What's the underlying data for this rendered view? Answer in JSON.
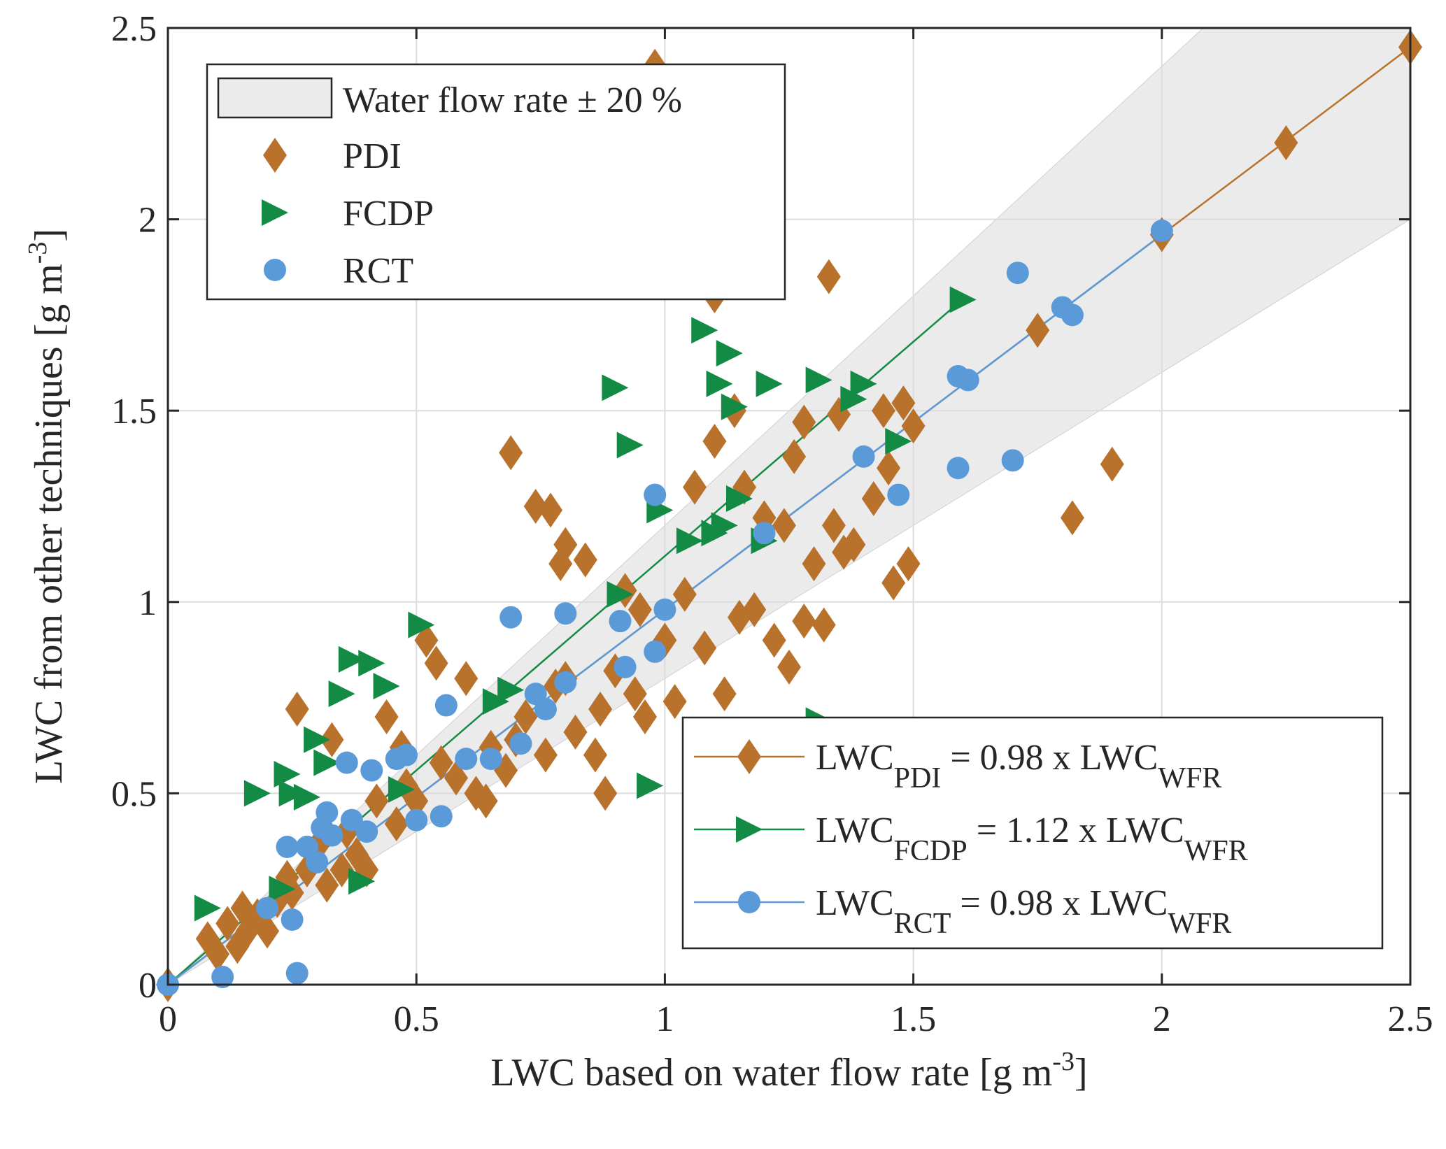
{
  "chart_data": {
    "type": "scatter",
    "xlabel": "LWC based on water flow rate [g m",
    "xlabel_sup": "-3",
    "xlabel_end": "]",
    "ylabel": "LWC from other techniques [g m",
    "ylabel_sup": "-3",
    "ylabel_end": "]",
    "xlim": [
      0,
      2.5
    ],
    "ylim": [
      0,
      2.5
    ],
    "grid": true,
    "xticks": [
      "0",
      "0.5",
      "1",
      "1.5",
      "2",
      "2.5"
    ],
    "yticks": [
      "0",
      "0.5",
      "1",
      "1.5",
      "2",
      "2.5"
    ],
    "band": {
      "label": "Water flow rate ± 20 %",
      "lower_factor": 0.8,
      "upper_factor": 1.2
    },
    "legend_markers": [
      {
        "name": "PDI",
        "marker": "diamond",
        "color": "#b8722c"
      },
      {
        "name": "FCDP",
        "marker": "triangle-right",
        "color": "#138b45"
      },
      {
        "name": "RCT",
        "marker": "circle",
        "color": "#5b9ad8"
      }
    ],
    "fit_lines": [
      {
        "series": "PDI",
        "main": "LWC",
        "sub": "PDI",
        "eq": " = 0.98 x LWC",
        "sub2": "WFR",
        "slope": 0.98,
        "x_range": [
          0,
          2.5
        ],
        "color": "#b8722c"
      },
      {
        "series": "FCDP",
        "main": "LWC",
        "sub": "FCDP",
        "eq": " = 1.12 x LWC",
        "sub2": "WFR",
        "slope": 1.12,
        "x_range": [
          0,
          1.6
        ],
        "color": "#138b45"
      },
      {
        "series": "RCT",
        "main": "LWC",
        "sub": "RCT",
        "eq": " = 0.98 x LWC",
        "sub2": "WFR",
        "slope": 0.98,
        "x_range": [
          0,
          2.0
        ],
        "color": "#5b9ad8"
      }
    ],
    "series": [
      {
        "name": "PDI",
        "points": [
          [
            0.0,
            0.0
          ],
          [
            0.08,
            0.12
          ],
          [
            0.1,
            0.08
          ],
          [
            0.12,
            0.16
          ],
          [
            0.14,
            0.1
          ],
          [
            0.15,
            0.2
          ],
          [
            0.16,
            0.14
          ],
          [
            0.18,
            0.18
          ],
          [
            0.2,
            0.14
          ],
          [
            0.22,
            0.22
          ],
          [
            0.24,
            0.28
          ],
          [
            0.25,
            0.24
          ],
          [
            0.26,
            0.72
          ],
          [
            0.28,
            0.3
          ],
          [
            0.3,
            0.36
          ],
          [
            0.32,
            0.26
          ],
          [
            0.33,
            0.64
          ],
          [
            0.35,
            0.3
          ],
          [
            0.36,
            0.4
          ],
          [
            0.38,
            0.34
          ],
          [
            0.4,
            0.3
          ],
          [
            0.42,
            0.48
          ],
          [
            0.44,
            0.7
          ],
          [
            0.46,
            0.42
          ],
          [
            0.47,
            0.62
          ],
          [
            0.48,
            0.52
          ],
          [
            0.5,
            0.48
          ],
          [
            0.52,
            0.9
          ],
          [
            0.54,
            0.84
          ],
          [
            0.55,
            0.58
          ],
          [
            0.58,
            0.54
          ],
          [
            0.6,
            0.8
          ],
          [
            0.62,
            0.5
          ],
          [
            0.64,
            0.48
          ],
          [
            0.65,
            0.62
          ],
          [
            0.68,
            0.56
          ],
          [
            0.69,
            1.39
          ],
          [
            0.7,
            0.64
          ],
          [
            0.72,
            0.7
          ],
          [
            0.74,
            1.25
          ],
          [
            0.76,
            0.6
          ],
          [
            0.77,
            1.24
          ],
          [
            0.78,
            0.78
          ],
          [
            0.79,
            1.1
          ],
          [
            0.8,
            1.15
          ],
          [
            0.82,
            0.66
          ],
          [
            0.84,
            1.11
          ],
          [
            0.86,
            0.6
          ],
          [
            0.87,
            0.72
          ],
          [
            0.88,
            0.5
          ],
          [
            0.9,
            0.82
          ],
          [
            0.92,
            1.03
          ],
          [
            0.94,
            0.76
          ],
          [
            0.96,
            0.7
          ],
          [
            0.98,
            2.4
          ],
          [
            1.0,
            0.9
          ],
          [
            1.02,
            0.74
          ],
          [
            1.04,
            1.02
          ],
          [
            1.06,
            1.3
          ],
          [
            1.08,
            0.88
          ],
          [
            1.1,
            1.8
          ],
          [
            1.1,
            1.42
          ],
          [
            1.12,
            0.76
          ],
          [
            1.14,
            1.5
          ],
          [
            1.15,
            0.96
          ],
          [
            1.16,
            1.3
          ],
          [
            1.18,
            0.98
          ],
          [
            1.2,
            1.22
          ],
          [
            1.22,
            0.9
          ],
          [
            1.24,
            1.2
          ],
          [
            1.26,
            1.38
          ],
          [
            1.28,
            1.47
          ],
          [
            1.28,
            0.95
          ],
          [
            1.3,
            1.1
          ],
          [
            1.32,
            0.94
          ],
          [
            1.33,
            1.85
          ],
          [
            1.34,
            1.2
          ],
          [
            1.35,
            1.49
          ],
          [
            1.36,
            1.13
          ],
          [
            1.38,
            1.15
          ],
          [
            1.42,
            1.27
          ],
          [
            1.44,
            1.5
          ],
          [
            1.45,
            1.35
          ],
          [
            1.46,
            1.05
          ],
          [
            1.48,
            1.52
          ],
          [
            1.49,
            1.1
          ],
          [
            1.5,
            1.46
          ],
          [
            1.75,
            1.71
          ],
          [
            1.82,
            1.22
          ],
          [
            1.9,
            1.36
          ],
          [
            2.0,
            1.96
          ],
          [
            2.25,
            2.2
          ],
          [
            2.5,
            2.45
          ],
          [
            1.25,
            0.83
          ],
          [
            0.8,
            0.8
          ],
          [
            0.95,
            0.98
          ]
        ]
      },
      {
        "name": "FCDP",
        "points": [
          [
            0.08,
            0.2
          ],
          [
            0.18,
            0.5
          ],
          [
            0.23,
            0.25
          ],
          [
            0.24,
            0.55
          ],
          [
            0.25,
            0.5
          ],
          [
            0.28,
            0.49
          ],
          [
            0.3,
            0.64
          ],
          [
            0.32,
            0.58
          ],
          [
            0.35,
            0.76
          ],
          [
            0.37,
            0.85
          ],
          [
            0.39,
            0.27
          ],
          [
            0.41,
            0.84
          ],
          [
            0.44,
            0.78
          ],
          [
            0.47,
            0.51
          ],
          [
            0.51,
            0.94
          ],
          [
            0.66,
            0.74
          ],
          [
            0.69,
            0.77
          ],
          [
            0.9,
            1.56
          ],
          [
            0.91,
            1.02
          ],
          [
            0.93,
            1.41
          ],
          [
            0.97,
            0.52
          ],
          [
            0.99,
            1.24
          ],
          [
            1.05,
            1.16
          ],
          [
            1.08,
            1.71
          ],
          [
            1.1,
            1.18
          ],
          [
            1.11,
            1.57
          ],
          [
            1.12,
            1.2
          ],
          [
            1.13,
            1.65
          ],
          [
            1.14,
            1.51
          ],
          [
            1.15,
            1.27
          ],
          [
            1.2,
            1.16
          ],
          [
            1.21,
            1.57
          ],
          [
            1.31,
            1.58
          ],
          [
            1.31,
            0.69
          ],
          [
            1.38,
            1.53
          ],
          [
            1.4,
            1.57
          ],
          [
            1.47,
            1.42
          ],
          [
            1.6,
            1.79
          ]
        ]
      },
      {
        "name": "RCT",
        "points": [
          [
            0.0,
            0.0
          ],
          [
            0.11,
            0.02
          ],
          [
            0.2,
            0.2
          ],
          [
            0.24,
            0.36
          ],
          [
            0.25,
            0.17
          ],
          [
            0.26,
            0.03
          ],
          [
            0.28,
            0.36
          ],
          [
            0.3,
            0.32
          ],
          [
            0.31,
            0.41
          ],
          [
            0.32,
            0.45
          ],
          [
            0.33,
            0.39
          ],
          [
            0.36,
            0.58
          ],
          [
            0.37,
            0.43
          ],
          [
            0.4,
            0.4
          ],
          [
            0.41,
            0.56
          ],
          [
            0.46,
            0.59
          ],
          [
            0.48,
            0.6
          ],
          [
            0.5,
            0.43
          ],
          [
            0.55,
            0.44
          ],
          [
            0.56,
            0.73
          ],
          [
            0.6,
            0.59
          ],
          [
            0.65,
            0.59
          ],
          [
            0.69,
            0.96
          ],
          [
            0.71,
            0.63
          ],
          [
            0.74,
            0.76
          ],
          [
            0.76,
            0.72
          ],
          [
            0.8,
            0.97
          ],
          [
            0.8,
            0.79
          ],
          [
            0.91,
            0.95
          ],
          [
            0.92,
            0.83
          ],
          [
            0.98,
            0.87
          ],
          [
            0.98,
            1.28
          ],
          [
            1.0,
            0.98
          ],
          [
            1.2,
            1.18
          ],
          [
            1.4,
            1.38
          ],
          [
            1.47,
            1.28
          ],
          [
            1.59,
            1.35
          ],
          [
            1.59,
            1.59
          ],
          [
            1.61,
            1.58
          ],
          [
            1.7,
            1.37
          ],
          [
            1.71,
            1.86
          ],
          [
            1.8,
            1.77
          ],
          [
            1.82,
            1.75
          ],
          [
            2.0,
            1.97
          ]
        ]
      }
    ]
  }
}
